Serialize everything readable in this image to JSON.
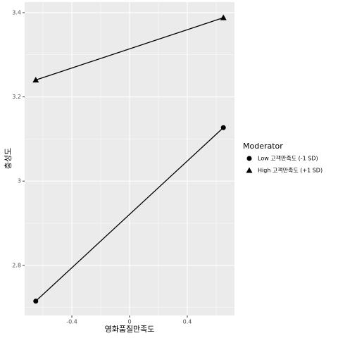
{
  "chart_data": {
    "type": "line",
    "x_label": "영화품질만족도",
    "y_label": "충성도",
    "x": [
      -0.65,
      0.65
    ],
    "series": [
      {
        "name": "Low 고객만족도 (-1 SD)",
        "color": "#000000",
        "shape": "circle",
        "values": [
          2.715,
          3.127
        ]
      },
      {
        "name": "High 고객만족도 (+1 SD)",
        "color": "#000000",
        "shape": "triangle",
        "values": [
          3.24,
          3.388
        ]
      }
    ],
    "legend_title": "Moderator",
    "legend": "right",
    "xlim": [
      -0.727,
      0.727
    ],
    "xticks": [
      -0.4,
      0.0,
      0.4
    ],
    "ylim": [
      2.681,
      3.425
    ],
    "yticks": [
      2.8,
      3.0,
      3.2,
      3.4
    ],
    "grid": true,
    "panel_color": "#ebebeb"
  }
}
